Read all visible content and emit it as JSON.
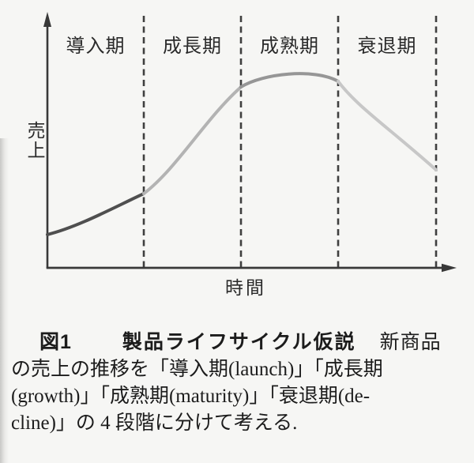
{
  "figure": {
    "phase_labels": [
      "導入期",
      "成長期",
      "成熟期",
      "衰退期"
    ],
    "y_axis_label": "売上",
    "x_axis_label": "時間"
  },
  "chart_data": {
    "type": "line",
    "title": "製品ライフサイクル仮説",
    "xlabel": "時間",
    "ylabel": "売上",
    "x_tick_labels": [],
    "y_tick_labels": [],
    "grid": false,
    "axis_arrows": true,
    "x_range_norm": [
      0,
      1
    ],
    "y_range_norm": [
      0,
      1
    ],
    "phases": [
      {
        "label": "導入期",
        "label_en": "launch",
        "x_start": 0.0,
        "x_end": 0.248,
        "curve_color": "#4f4f4f"
      },
      {
        "label": "成長期",
        "label_en": "growth",
        "x_start": 0.248,
        "x_end": 0.498,
        "curve_color": "#b3b3b3"
      },
      {
        "label": "成熟期",
        "label_en": "maturity",
        "x_start": 0.498,
        "x_end": 0.748,
        "curve_color": "#969696"
      },
      {
        "label": "衰退期",
        "label_en": "decline",
        "x_start": 0.748,
        "x_end": 1.0,
        "curve_color": "#c7c7c7"
      }
    ],
    "boundary_lines_x": [
      0.248,
      0.498,
      0.748,
      1.0
    ],
    "curve_segments": [
      {
        "phase": "導入期",
        "color": "#4f4f4f",
        "bezier": [
          [
            0.0,
            0.134
          ],
          [
            0.081,
            0.166
          ],
          [
            0.173,
            0.245
          ],
          [
            0.248,
            0.299
          ]
        ]
      },
      {
        "phase": "成長期",
        "color": "#b3b3b3",
        "bezier": [
          [
            0.248,
            0.299
          ],
          [
            0.335,
            0.404
          ],
          [
            0.407,
            0.602
          ],
          [
            0.498,
            0.729
          ]
        ]
      },
      {
        "phase": "成熟期",
        "color": "#969696",
        "bezier": [
          [
            0.498,
            0.729
          ],
          [
            0.553,
            0.783
          ],
          [
            0.687,
            0.806
          ],
          [
            0.748,
            0.752
          ]
        ]
      },
      {
        "phase": "衰退期",
        "color": "#c7c7c7",
        "bezier": [
          [
            0.748,
            0.752
          ],
          [
            0.797,
            0.65
          ],
          [
            0.874,
            0.57
          ],
          [
            1.0,
            0.395
          ]
        ]
      }
    ],
    "sales_start_norm": 0.134,
    "sales_peak_norm": 0.79,
    "sales_end_norm": 0.395
  },
  "caption": {
    "label": "図1",
    "title": "製品ライフサイクル仮説",
    "line1_rest": "新商品",
    "line2": "の売上の推移を「導入期(launch)」「成長期",
    "line3": "(growth)」「成熟期(maturity)」「衰退期(de-",
    "line4": "cline)」の 4 段階に分けて考える."
  },
  "colors": {
    "background": "#f6f6f4",
    "axis": "#383838",
    "dashed_boundary": "#3f3f3f",
    "label_text": "#2a2a2a",
    "caption_text": "#1c1c1c"
  }
}
